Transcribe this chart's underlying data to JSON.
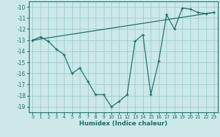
{
  "xlabel": "Humidex (Indice chaleur)",
  "background_color": "#cce8e8",
  "grid_color": "#99cccc",
  "line_color": "#1a6b6b",
  "x_data": [
    0,
    1,
    2,
    3,
    4,
    5,
    6,
    7,
    8,
    9,
    10,
    11,
    12,
    13,
    14,
    15,
    16,
    17,
    18,
    19,
    20,
    21,
    22,
    23
  ],
  "y_data": [
    -13.0,
    -12.7,
    -13.1,
    -13.8,
    -14.3,
    -16.0,
    -15.5,
    -16.7,
    -17.9,
    -17.9,
    -19.0,
    -18.5,
    -17.9,
    -13.1,
    -12.5,
    -17.9,
    -14.9,
    -10.7,
    -12.0,
    -10.1,
    -10.2,
    -10.5,
    -10.6,
    -10.5
  ],
  "ylim": [
    -19.5,
    -9.5
  ],
  "xlim": [
    -0.5,
    23.5
  ],
  "yticks": [
    -10,
    -11,
    -12,
    -13,
    -14,
    -15,
    -16,
    -17,
    -18,
    -19
  ],
  "xticks": [
    0,
    1,
    2,
    3,
    4,
    5,
    6,
    7,
    8,
    9,
    10,
    11,
    12,
    13,
    14,
    15,
    16,
    17,
    18,
    19,
    20,
    21,
    22,
    23
  ],
  "reg_line_x": [
    0,
    23
  ],
  "reg_line_y": [
    -13.0,
    -10.5
  ]
}
